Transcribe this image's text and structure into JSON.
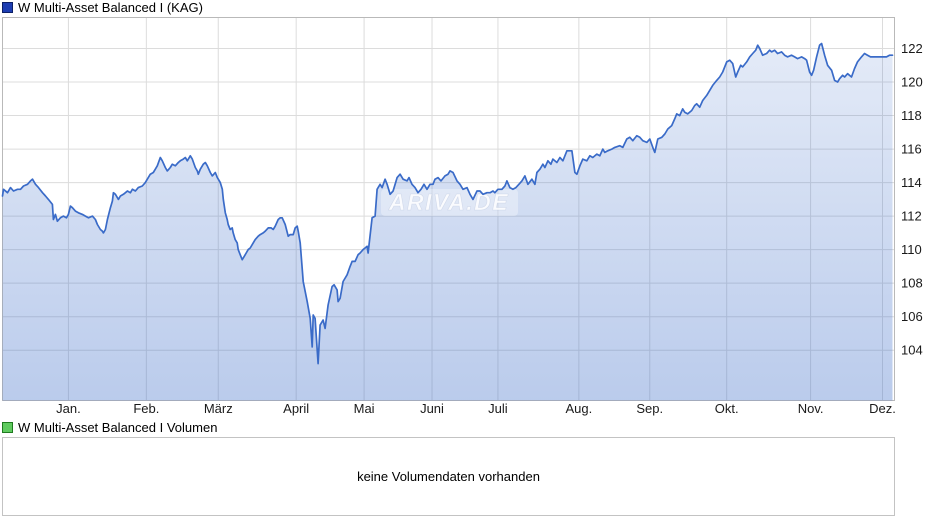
{
  "price_legend": {
    "title": "W Multi-Asset Balanced I (KAG)",
    "swatch_color": "#1d3db2",
    "swatch_border": "#0c1f66"
  },
  "volume_legend": {
    "title": "W Multi-Asset Balanced I Volumen",
    "swatch_color": "#5fcb5f",
    "swatch_border": "#1f7a1f"
  },
  "volume_panel": {
    "message": "keine Volumendaten vorhanden"
  },
  "watermark": {
    "text": "ARIVA.DE"
  },
  "colors": {
    "line": "#3a6bc8",
    "fill_top": "rgba(58,107,200,0.12)",
    "fill_bottom": "rgba(58,107,200,0.35)",
    "grid": "#dcdcdc",
    "border": "#b9b9b9",
    "axis_text": "#1a1a1a"
  },
  "chart_data": {
    "type": "area",
    "title": "W Multi-Asset Balanced I (KAG)",
    "ylabel": "",
    "xlabel": "",
    "grid": true,
    "legend_position": "top-left",
    "y_axis": {
      "ticks": [
        122,
        120,
        118,
        116,
        114,
        112,
        110,
        108,
        106,
        104
      ],
      "range": [
        101.0,
        123.85
      ],
      "side": "right"
    },
    "x_axis": {
      "domain": [
        2,
        895
      ],
      "months": [
        "Jan.",
        "Feb.",
        "März",
        "April",
        "Mai",
        "Juni",
        "Juli",
        "Aug.",
        "Sep.",
        "Okt.",
        "Nov.",
        "Dez."
      ],
      "month_positions": [
        68,
        146,
        218,
        296,
        364,
        432,
        498,
        579,
        650,
        727,
        811,
        883
      ]
    },
    "points": [
      [
        2,
        113.2
      ],
      [
        3,
        113.6
      ],
      [
        7,
        113.4
      ],
      [
        10,
        113.7
      ],
      [
        13,
        113.5
      ],
      [
        17,
        113.6
      ],
      [
        20,
        113.6
      ],
      [
        23,
        113.8
      ],
      [
        27,
        113.9
      ],
      [
        30,
        114.1
      ],
      [
        32,
        114.2
      ],
      [
        35,
        113.9
      ],
      [
        38,
        113.7
      ],
      [
        42,
        113.4
      ],
      [
        45,
        113.2
      ],
      [
        48,
        113.0
      ],
      [
        52,
        112.7
      ],
      [
        53,
        111.8
      ],
      [
        55,
        112.1
      ],
      [
        57,
        111.7
      ],
      [
        60,
        111.9
      ],
      [
        63,
        112.0
      ],
      [
        66,
        111.9
      ],
      [
        68,
        112.1
      ],
      [
        70,
        112.6
      ],
      [
        72,
        112.5
      ],
      [
        75,
        112.3
      ],
      [
        78,
        112.2
      ],
      [
        82,
        112.1
      ],
      [
        85,
        112.0
      ],
      [
        88,
        111.9
      ],
      [
        92,
        112.0
      ],
      [
        95,
        111.8
      ],
      [
        97,
        111.5
      ],
      [
        100,
        111.2
      ],
      [
        102,
        111.1
      ],
      [
        103,
        111.0
      ],
      [
        105,
        111.2
      ],
      [
        107,
        111.8
      ],
      [
        110,
        112.5
      ],
      [
        112,
        112.9
      ],
      [
        113,
        113.4
      ],
      [
        115,
        113.3
      ],
      [
        117,
        113.1
      ],
      [
        118,
        113.0
      ],
      [
        120,
        113.2
      ],
      [
        123,
        113.3
      ],
      [
        125,
        113.4
      ],
      [
        127,
        113.5
      ],
      [
        130,
        113.4
      ],
      [
        132,
        113.6
      ],
      [
        135,
        113.5
      ],
      [
        138,
        113.7
      ],
      [
        142,
        113.8
      ],
      [
        145,
        114.0
      ],
      [
        147,
        114.2
      ],
      [
        150,
        114.5
      ],
      [
        153,
        114.6
      ],
      [
        155,
        114.8
      ],
      [
        157,
        115.0
      ],
      [
        160,
        115.5
      ],
      [
        162,
        115.3
      ],
      [
        165,
        114.9
      ],
      [
        167,
        114.7
      ],
      [
        170,
        114.9
      ],
      [
        172,
        115.1
      ],
      [
        175,
        115.0
      ],
      [
        178,
        115.2
      ],
      [
        180,
        115.3
      ],
      [
        183,
        115.4
      ],
      [
        185,
        115.5
      ],
      [
        187,
        115.3
      ],
      [
        190,
        115.6
      ],
      [
        192,
        115.4
      ],
      [
        195,
        114.9
      ],
      [
        197,
        114.7
      ],
      [
        198,
        114.5
      ],
      [
        200,
        114.8
      ],
      [
        203,
        115.1
      ],
      [
        205,
        115.2
      ],
      [
        207,
        115.0
      ],
      [
        210,
        114.6
      ],
      [
        212,
        114.4
      ],
      [
        215,
        114.6
      ],
      [
        217,
        114.3
      ],
      [
        218,
        114.2
      ],
      [
        220,
        114.0
      ],
      [
        222,
        113.6
      ],
      [
        223,
        113.0
      ],
      [
        225,
        112.2
      ],
      [
        227,
        111.8
      ],
      [
        228,
        111.5
      ],
      [
        230,
        111.2
      ],
      [
        232,
        111.3
      ],
      [
        233,
        111.0
      ],
      [
        235,
        110.6
      ],
      [
        237,
        110.4
      ],
      [
        238,
        110.0
      ],
      [
        240,
        109.7
      ],
      [
        242,
        109.4
      ],
      [
        244,
        109.6
      ],
      [
        246,
        109.8
      ],
      [
        248,
        110.0
      ],
      [
        250,
        110.1
      ],
      [
        253,
        110.4
      ],
      [
        255,
        110.6
      ],
      [
        258,
        110.8
      ],
      [
        260,
        110.9
      ],
      [
        263,
        111.0
      ],
      [
        265,
        111.1
      ],
      [
        268,
        111.3
      ],
      [
        271,
        111.3
      ],
      [
        273,
        111.2
      ],
      [
        275,
        111.4
      ],
      [
        278,
        111.8
      ],
      [
        280,
        111.9
      ],
      [
        282,
        111.9
      ],
      [
        285,
        111.5
      ],
      [
        288,
        110.8
      ],
      [
        290,
        110.9
      ],
      [
        293,
        110.9
      ],
      [
        295,
        111.3
      ],
      [
        297,
        111.4
      ],
      [
        298,
        111.1
      ],
      [
        300,
        110.4
      ],
      [
        303,
        108.1
      ],
      [
        305,
        107.5
      ],
      [
        307,
        106.9
      ],
      [
        310,
        105.9
      ],
      [
        312,
        104.2
      ],
      [
        313,
        106.1
      ],
      [
        315,
        105.9
      ],
      [
        318,
        103.2
      ],
      [
        320,
        105.5
      ],
      [
        323,
        105.8
      ],
      [
        325,
        105.3
      ],
      [
        328,
        106.7
      ],
      [
        332,
        107.8
      ],
      [
        334,
        107.9
      ],
      [
        337,
        107.6
      ],
      [
        338,
        106.9
      ],
      [
        340,
        107.1
      ],
      [
        343,
        108.1
      ],
      [
        347,
        108.5
      ],
      [
        350,
        109.0
      ],
      [
        352,
        109.3
      ],
      [
        355,
        109.3
      ],
      [
        358,
        109.7
      ],
      [
        360,
        109.8
      ],
      [
        363,
        110.0
      ],
      [
        365,
        110.1
      ],
      [
        367,
        110.2
      ],
      [
        368,
        109.8
      ],
      [
        372,
        111.9
      ],
      [
        375,
        112.0
      ],
      [
        377,
        113.6
      ],
      [
        380,
        113.9
      ],
      [
        382,
        113.7
      ],
      [
        385,
        114.2
      ],
      [
        387,
        113.9
      ],
      [
        390,
        113.3
      ],
      [
        393,
        113.5
      ],
      [
        397,
        114.3
      ],
      [
        400,
        114.5
      ],
      [
        403,
        114.2
      ],
      [
        407,
        114.1
      ],
      [
        409,
        114.3
      ],
      [
        412,
        113.9
      ],
      [
        415,
        113.7
      ],
      [
        418,
        113.4
      ],
      [
        421,
        113.6
      ],
      [
        424,
        113.9
      ],
      [
        427,
        113.6
      ],
      [
        430,
        113.9
      ],
      [
        433,
        113.9
      ],
      [
        435,
        114.2
      ],
      [
        438,
        114.3
      ],
      [
        441,
        114.1
      ],
      [
        445,
        114.4
      ],
      [
        448,
        114.5
      ],
      [
        450,
        114.7
      ],
      [
        453,
        114.6
      ],
      [
        457,
        114.1
      ],
      [
        460,
        113.9
      ],
      [
        463,
        113.6
      ],
      [
        467,
        113.7
      ],
      [
        470,
        113.3
      ],
      [
        473,
        113.0
      ],
      [
        477,
        113.5
      ],
      [
        480,
        113.5
      ],
      [
        483,
        113.3
      ],
      [
        487,
        113.4
      ],
      [
        490,
        113.4
      ],
      [
        493,
        113.5
      ],
      [
        495,
        113.4
      ],
      [
        498,
        113.6
      ],
      [
        502,
        113.6
      ],
      [
        505,
        113.8
      ],
      [
        507,
        114.1
      ],
      [
        510,
        113.7
      ],
      [
        513,
        113.6
      ],
      [
        516,
        113.7
      ],
      [
        519,
        113.9
      ],
      [
        522,
        114.1
      ],
      [
        525,
        114.4
      ],
      [
        528,
        113.9
      ],
      [
        532,
        114.2
      ],
      [
        535,
        113.9
      ],
      [
        537,
        114.6
      ],
      [
        540,
        114.8
      ],
      [
        543,
        115.1
      ],
      [
        545,
        114.9
      ],
      [
        548,
        115.3
      ],
      [
        551,
        115.1
      ],
      [
        553,
        115.4
      ],
      [
        557,
        115.2
      ],
      [
        560,
        115.5
      ],
      [
        563,
        115.3
      ],
      [
        567,
        115.9
      ],
      [
        570,
        115.9
      ],
      [
        572,
        115.9
      ],
      [
        575,
        114.6
      ],
      [
        577,
        114.5
      ],
      [
        580,
        115.0
      ],
      [
        583,
        115.4
      ],
      [
        587,
        115.3
      ],
      [
        590,
        115.6
      ],
      [
        593,
        115.5
      ],
      [
        597,
        115.7
      ],
      [
        600,
        115.6
      ],
      [
        603,
        116.0
      ],
      [
        605,
        115.8
      ],
      [
        608,
        115.9
      ],
      [
        612,
        116.0
      ],
      [
        615,
        116.1
      ],
      [
        620,
        116.2
      ],
      [
        623,
        116.1
      ],
      [
        627,
        116.6
      ],
      [
        630,
        116.7
      ],
      [
        633,
        116.5
      ],
      [
        637,
        116.8
      ],
      [
        640,
        116.7
      ],
      [
        643,
        116.5
      ],
      [
        647,
        116.4
      ],
      [
        650,
        116.6
      ],
      [
        653,
        116.1
      ],
      [
        655,
        115.8
      ],
      [
        658,
        116.6
      ],
      [
        662,
        116.7
      ],
      [
        665,
        116.9
      ],
      [
        668,
        117.2
      ],
      [
        672,
        117.4
      ],
      [
        675,
        117.8
      ],
      [
        677,
        118.1
      ],
      [
        680,
        118.0
      ],
      [
        683,
        118.4
      ],
      [
        685,
        118.2
      ],
      [
        688,
        118.1
      ],
      [
        692,
        118.3
      ],
      [
        695,
        118.6
      ],
      [
        697,
        118.7
      ],
      [
        700,
        118.5
      ],
      [
        703,
        118.9
      ],
      [
        707,
        119.2
      ],
      [
        710,
        119.5
      ],
      [
        713,
        119.8
      ],
      [
        717,
        120.1
      ],
      [
        720,
        120.3
      ],
      [
        723,
        120.6
      ],
      [
        727,
        121.2
      ],
      [
        730,
        121.3
      ],
      [
        733,
        121.1
      ],
      [
        736,
        120.3
      ],
      [
        738,
        120.6
      ],
      [
        741,
        121.0
      ],
      [
        743,
        120.9
      ],
      [
        747,
        121.2
      ],
      [
        750,
        121.5
      ],
      [
        753,
        121.7
      ],
      [
        756,
        121.9
      ],
      [
        758,
        122.2
      ],
      [
        760,
        122.0
      ],
      [
        763,
        121.6
      ],
      [
        767,
        121.7
      ],
      [
        770,
        121.9
      ],
      [
        772,
        121.8
      ],
      [
        775,
        121.9
      ],
      [
        778,
        121.7
      ],
      [
        782,
        121.8
      ],
      [
        785,
        121.6
      ],
      [
        788,
        121.5
      ],
      [
        792,
        121.6
      ],
      [
        795,
        121.5
      ],
      [
        798,
        121.4
      ],
      [
        802,
        121.5
      ],
      [
        805,
        121.4
      ],
      [
        807,
        121.3
      ],
      [
        810,
        120.6
      ],
      [
        812,
        120.4
      ],
      [
        814,
        120.7
      ],
      [
        817,
        121.5
      ],
      [
        820,
        122.2
      ],
      [
        822,
        122.3
      ],
      [
        825,
        121.6
      ],
      [
        828,
        121.0
      ],
      [
        832,
        120.7
      ],
      [
        835,
        120.1
      ],
      [
        838,
        120.0
      ],
      [
        840,
        120.2
      ],
      [
        843,
        120.4
      ],
      [
        845,
        120.3
      ],
      [
        848,
        120.5
      ],
      [
        852,
        120.3
      ],
      [
        855,
        120.8
      ],
      [
        858,
        121.2
      ],
      [
        862,
        121.5
      ],
      [
        865,
        121.7
      ],
      [
        868,
        121.6
      ],
      [
        871,
        121.5
      ],
      [
        875,
        121.5
      ],
      [
        879,
        121.5
      ],
      [
        883,
        121.5
      ],
      [
        887,
        121.5
      ],
      [
        890,
        121.6
      ],
      [
        893,
        121.6
      ]
    ]
  }
}
